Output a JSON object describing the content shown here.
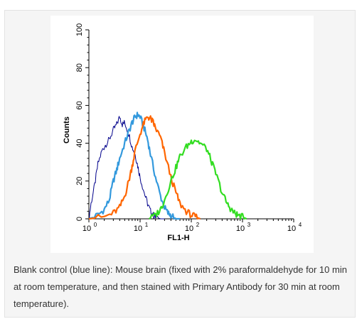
{
  "chart_data": {
    "type": "line",
    "xlabel": "FL1-H",
    "ylabel": "Counts",
    "x_scale": "log",
    "xlim": [
      1,
      10000
    ],
    "ylim": [
      0,
      100
    ],
    "x_ticks": [
      {
        "value": 1,
        "base": "10",
        "exp": "0"
      },
      {
        "value": 10,
        "base": "10",
        "exp": "1"
      },
      {
        "value": 100,
        "base": "10",
        "exp": "2"
      },
      {
        "value": 1000,
        "base": "10",
        "exp": "3"
      },
      {
        "value": 10000,
        "base": "10",
        "exp": "4"
      }
    ],
    "y_ticks": [
      "0",
      "20",
      "40",
      "60",
      "80",
      "100"
    ],
    "series": [
      {
        "color": "#00008b",
        "x": [
          1,
          1.1,
          1.3,
          1.5,
          1.8,
          2.1,
          2.5,
          3,
          3.5,
          4,
          4.5,
          5,
          6,
          7,
          8,
          9,
          10,
          12,
          14,
          16,
          18,
          20,
          25,
          30
        ],
        "y": [
          0,
          8,
          18,
          29,
          36,
          39,
          42,
          47,
          50,
          54,
          50,
          51,
          45,
          38,
          34,
          28,
          22,
          14,
          8,
          4,
          2,
          1,
          0,
          0
        ]
      },
      {
        "color": "#3399dd",
        "x": [
          1,
          1.5,
          2,
          2.5,
          3,
          3.5,
          4,
          5,
          6,
          7,
          8,
          9,
          10,
          12,
          14,
          16,
          20,
          25,
          30,
          35,
          40,
          50,
          60
        ],
        "y": [
          0,
          2,
          5,
          10,
          20,
          26,
          32,
          40,
          46,
          51,
          54,
          55,
          54,
          48,
          42,
          34,
          22,
          12,
          6,
          3,
          2,
          0,
          0
        ]
      },
      {
        "color": "#ff6600",
        "x": [
          1,
          2,
          3,
          4,
          5,
          6,
          7,
          8,
          10,
          12,
          14,
          16,
          18,
          20,
          25,
          30,
          40,
          50,
          60,
          80,
          100,
          120,
          150
        ],
        "y": [
          0,
          1,
          3,
          6,
          12,
          20,
          28,
          36,
          45,
          51,
          54,
          53,
          51,
          48,
          43,
          35,
          22,
          14,
          8,
          4,
          2,
          1,
          0
        ]
      },
      {
        "color": "#33dd22",
        "x": [
          15,
          20,
          25,
          30,
          40,
          50,
          60,
          80,
          100,
          120,
          150,
          200,
          250,
          300,
          400,
          500,
          600,
          700,
          800,
          1000,
          1200
        ],
        "y": [
          0,
          2,
          5,
          10,
          20,
          27,
          33,
          38,
          41,
          42,
          40,
          37,
          30,
          24,
          14,
          8,
          5,
          3,
          2,
          1,
          0
        ]
      }
    ]
  },
  "caption": "Blank control (blue line): Mouse brain (fixed with 2% paraformaldehyde for 10 min at room temperature, and then stained with Primary Antibody for 30 min at room temperature)."
}
